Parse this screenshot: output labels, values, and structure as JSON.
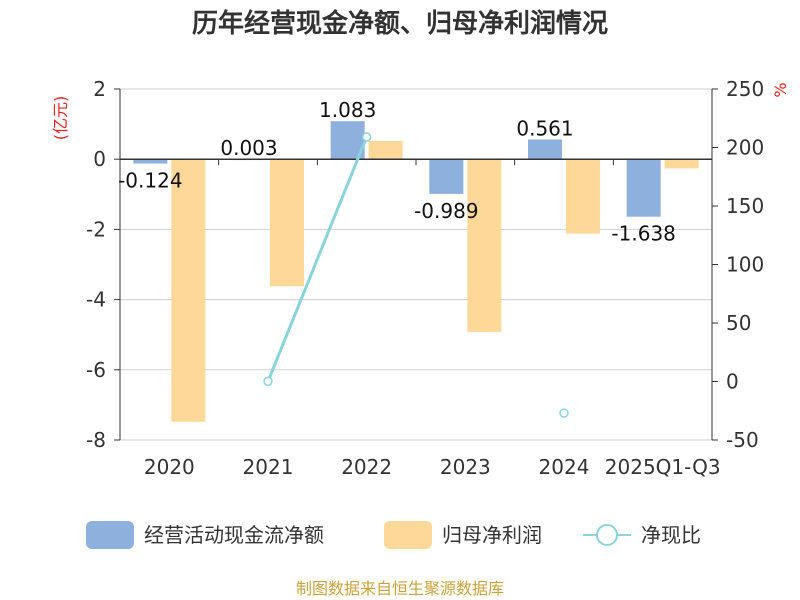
{
  "chart_data": {
    "type": "bar+line",
    "title": "历年经营现金净额、归母净利润情况",
    "categories": [
      "2020",
      "2021",
      "2022",
      "2023",
      "2024",
      "2025Q1-Q3"
    ],
    "left_axis": {
      "unit": "(亿元)",
      "ylim": [
        -8,
        2
      ],
      "ticks": [
        "2",
        "0",
        "-2",
        "-4",
        "-6",
        "-8"
      ]
    },
    "right_axis": {
      "unit": "%",
      "ylim": [
        -50,
        250
      ],
      "ticks": [
        "250",
        "200",
        "150",
        "100",
        "50",
        "0",
        "-50"
      ]
    },
    "series": [
      {
        "name": "经营活动现金流净额",
        "axis": "left",
        "kind": "bar",
        "color": "#8eb0dc",
        "values": [
          -0.124,
          0.003,
          1.083,
          -0.989,
          0.561,
          -1.638
        ],
        "labels": [
          "-0.124",
          "0.003",
          "1.083",
          "-0.989",
          "0.561",
          "-1.638"
        ]
      },
      {
        "name": "归母净利润",
        "axis": "left",
        "kind": "bar",
        "color": "#fdd899",
        "values": [
          -7.48,
          -3.62,
          0.52,
          -4.92,
          -2.12,
          -0.26
        ]
      },
      {
        "name": "净现比",
        "axis": "right",
        "kind": "line",
        "color": "#8ad3da",
        "values": [
          null,
          0.1,
          209,
          null,
          -27,
          null
        ]
      }
    ],
    "gridlines": true,
    "legend_position": "bottom"
  },
  "source": "制图数据来自恒生聚源数据库",
  "colors": {
    "unit": "#e02020",
    "source": "#c9a23a",
    "grid": "#cfcfcf",
    "axis": "#333333"
  }
}
